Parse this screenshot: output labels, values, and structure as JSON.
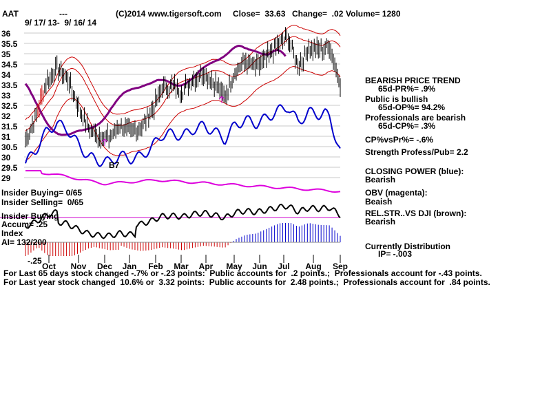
{
  "header": {
    "symbol": "AAT",
    "dashes": "---",
    "source": "(C)2014 www.tigersoft.com",
    "close": "Close=  33.63",
    "change": "Change=  .02",
    "volume": "Volume= 1280",
    "date_range": "9/ 17/ 13-  9/ 16/ 14"
  },
  "stats": {
    "trend": "BEARISH PRICE TREND",
    "pr": "65d-PR%= .9%",
    "public": "Public is bullish",
    "op": "65d-OP%= 94.2%",
    "professionals": "Professionals are bearish",
    "cp": "65d-CP%= .3%",
    "cpvspr": "CP%vsPr%= -.6%",
    "strength": "Strength Profess/Pub= 2.2",
    "closing_power": "CLOSING POWER (blue):",
    "closing_power_state": "Bearish",
    "obv": "OBV (magenta):",
    "obv_state": "Beaish",
    "relstr": "REL.STR..VS DJI (brown):",
    "relstr_state": "Bearish",
    "distribution": "Currently Distribution",
    "ip": "IP= -.003"
  },
  "left_labels": {
    "insider_buying": "Insider Buying= 0/65",
    "insider_selling": "Insider Selling=  0/65",
    "insider_buying2": "Insider Buying",
    "accum": "Accum= .25",
    "index": "Index",
    "ai": "AI= 132/200",
    "minus25": "-.25"
  },
  "signal": "B7",
  "footer": {
    "line1": "For Last 65 days stock changed -.7% or -.23 points:  Public accounts for  .2 points.;  Professionals account for -.43 points.",
    "line2": "For Last year stock changed  10.6% or  3.32 points:  Public accounts for  2.48 points.;  Professionals account for  .84 points."
  },
  "colors": {
    "price": "#000000",
    "ma": "#800080",
    "bands": "#cc0000",
    "closing_power": "#0000cc",
    "obv": "#dd00dd",
    "relstr": "#000000",
    "accum_pos": "#0000cc",
    "accum_neg": "#cc0000",
    "insider_line": "#cc00cc"
  },
  "chart_data": {
    "type": "line",
    "y_ticks": [
      "36",
      "35.5",
      "35",
      "34.5",
      "34",
      "33.5",
      "33",
      "32.5",
      "32",
      "31.5",
      "31",
      "30.5",
      "30",
      "29.5",
      "29"
    ],
    "ylim": [
      29,
      36
    ],
    "x_ticks": [
      "Oct",
      "Nov",
      "Dec",
      "Jan",
      "Feb",
      "Mar",
      "Apr",
      "May",
      "Jun",
      "Jul",
      "Aug",
      "Sep"
    ],
    "grid": true,
    "price_series": [
      {
        "month": "Sep",
        "close": 30.8
      },
      {
        "month": "Oct",
        "close": 32.0
      },
      {
        "month": "Oct",
        "close": 33.6
      },
      {
        "month": "Oct",
        "close": 34.3
      },
      {
        "month": "Oct",
        "close": 33.8
      },
      {
        "month": "Nov",
        "close": 32.5
      },
      {
        "month": "Nov",
        "close": 31.4
      },
      {
        "month": "Nov",
        "close": 31.0
      },
      {
        "month": "Dec",
        "close": 30.9
      },
      {
        "month": "Dec",
        "close": 31.5
      },
      {
        "month": "Dec",
        "close": 31.2
      },
      {
        "month": "Jan",
        "close": 31.4
      },
      {
        "month": "Jan",
        "close": 32.2
      },
      {
        "month": "Jan",
        "close": 33.3
      },
      {
        "month": "Feb",
        "close": 33.4
      },
      {
        "month": "Feb",
        "close": 33.2
      },
      {
        "month": "Mar",
        "close": 33.8
      },
      {
        "month": "Mar",
        "close": 34.1
      },
      {
        "month": "Apr",
        "close": 33.6
      },
      {
        "month": "Apr",
        "close": 32.9
      },
      {
        "month": "May",
        "close": 34.2
      },
      {
        "month": "May",
        "close": 34.6
      },
      {
        "month": "Jun",
        "close": 34.3
      },
      {
        "month": "Jun",
        "close": 34.8
      },
      {
        "month": "Jul",
        "close": 35.4
      },
      {
        "month": "Jul",
        "close": 35.8
      },
      {
        "month": "Jul",
        "close": 34.4
      },
      {
        "month": "Aug",
        "close": 35.3
      },
      {
        "month": "Aug",
        "close": 35.1
      },
      {
        "month": "Sep",
        "close": 35.4
      },
      {
        "month": "Sep",
        "close": 33.6
      }
    ]
  }
}
